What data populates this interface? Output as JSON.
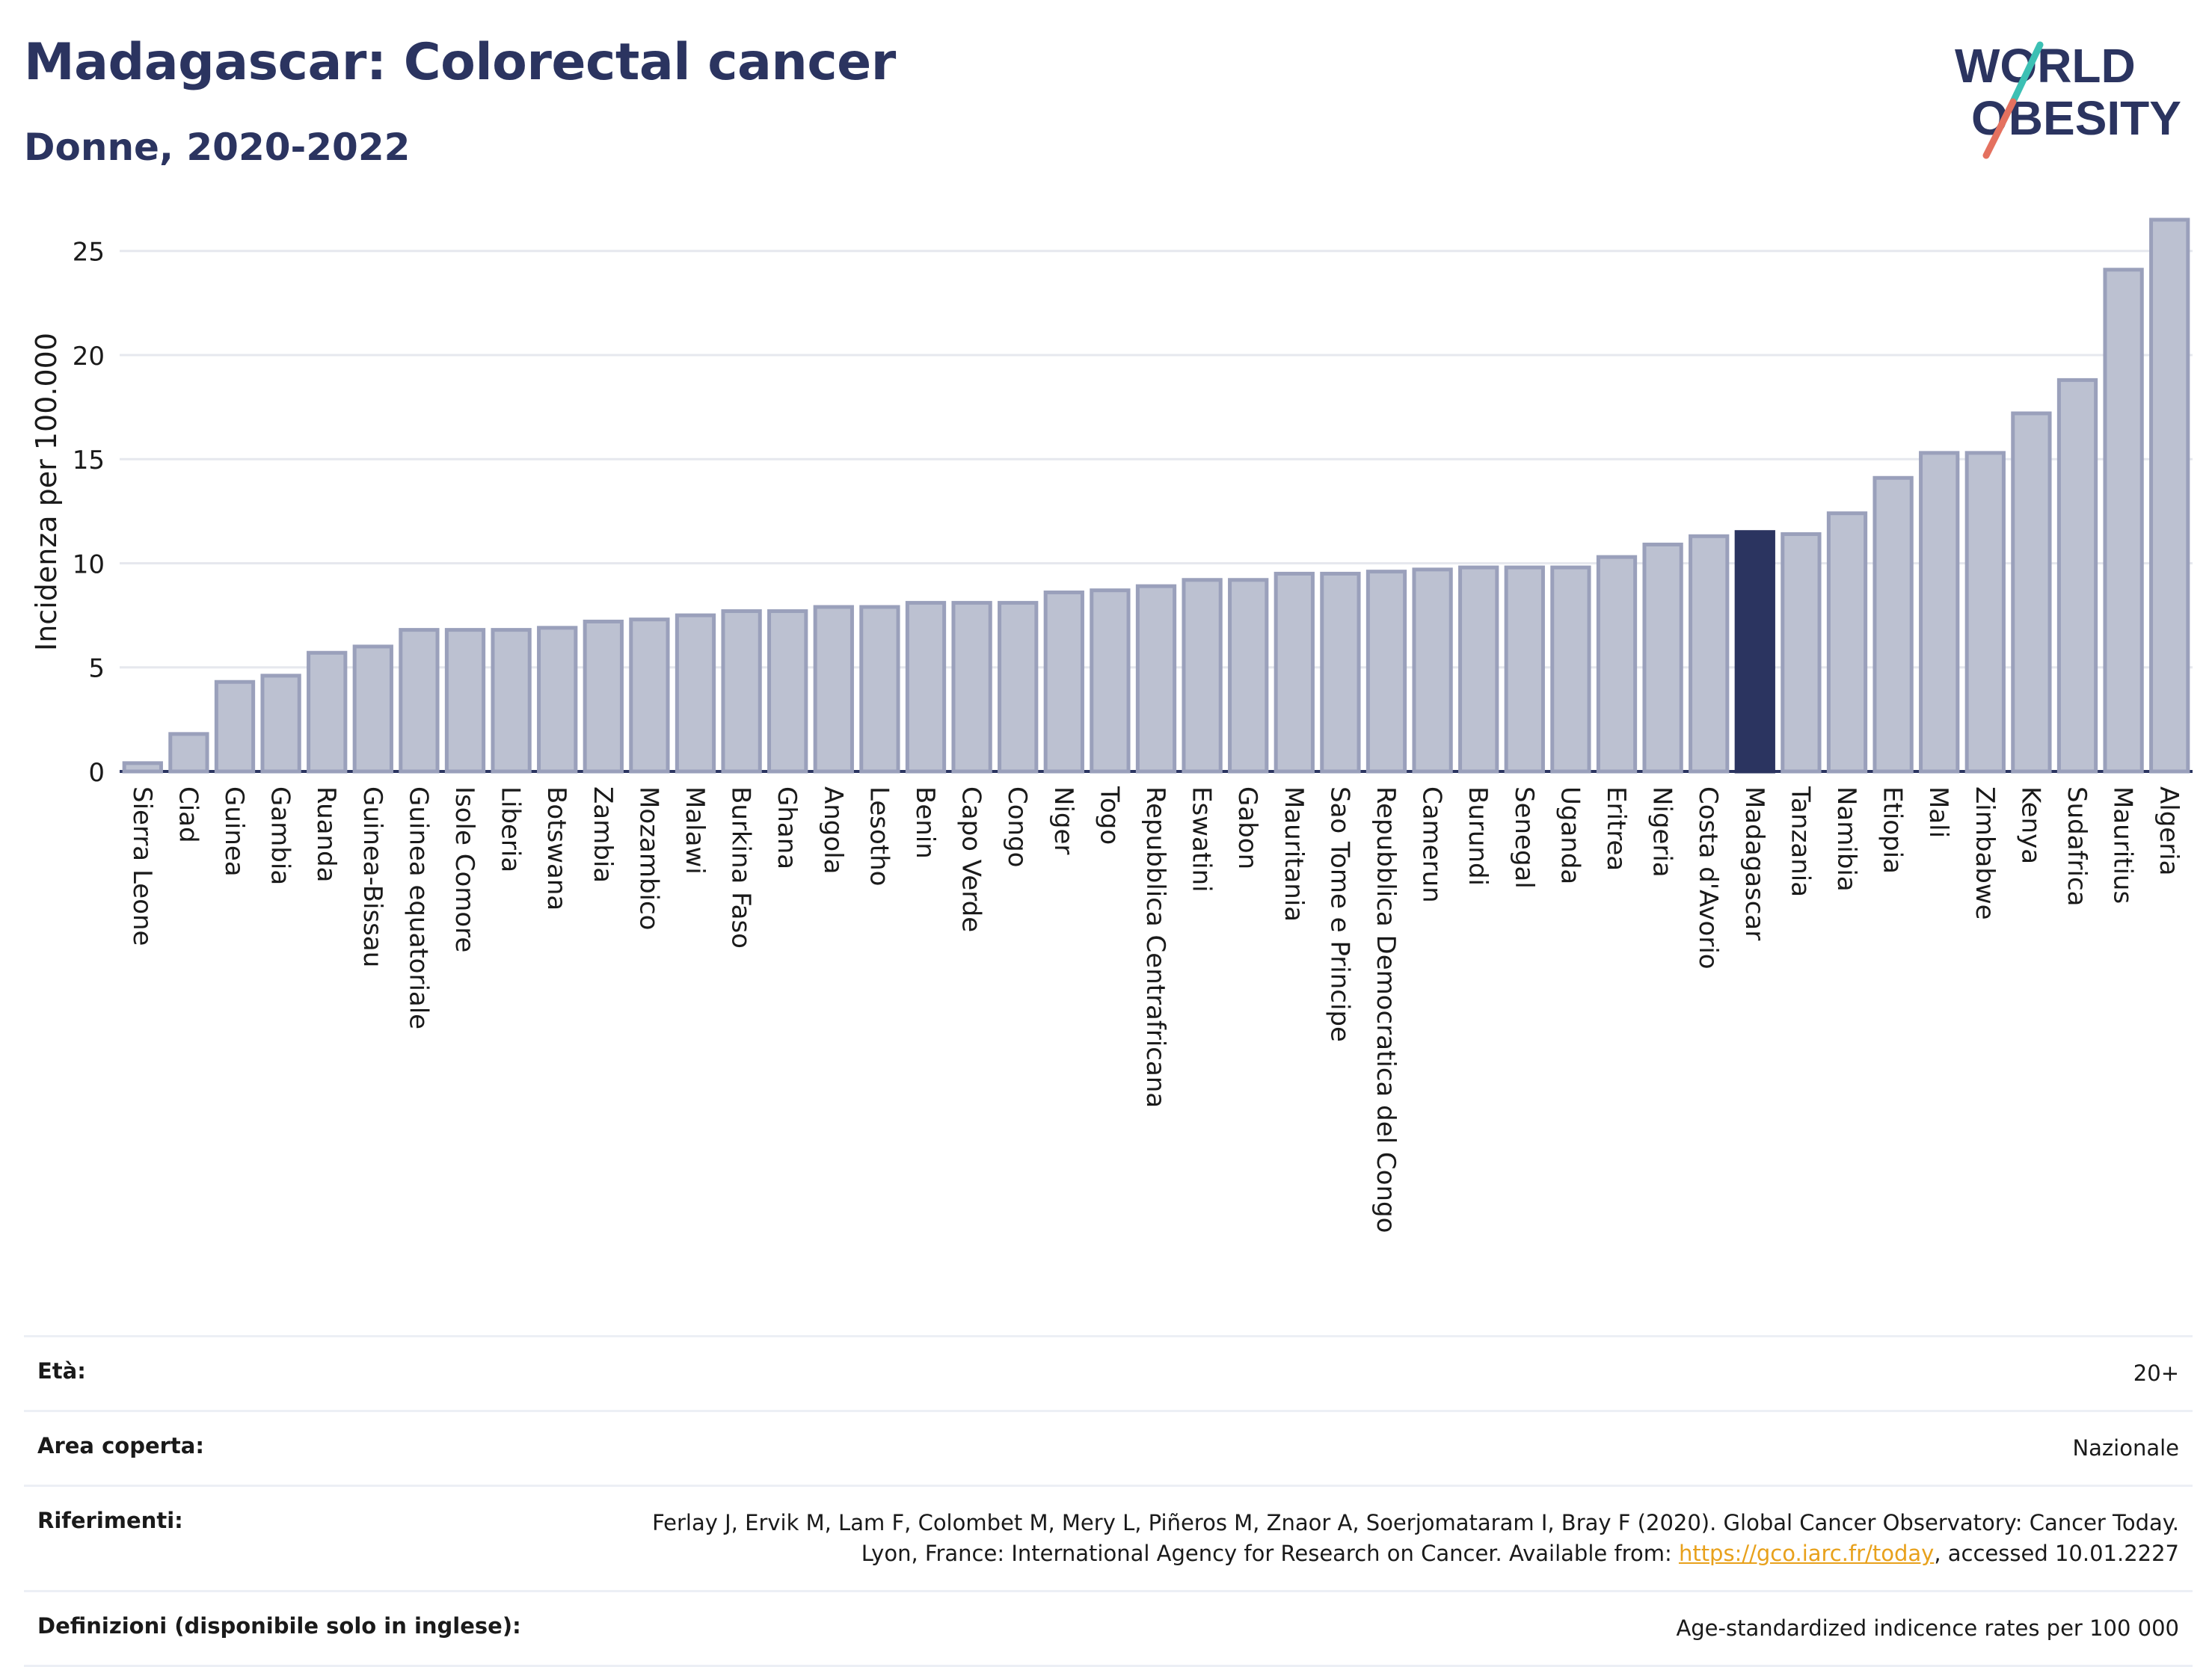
{
  "header": {
    "title": "Madagascar: Colorectal cancer",
    "subtitle": "Donne, 2020-2022",
    "logo_line1": "WORLD",
    "logo_line2": "OBESITY"
  },
  "colors": {
    "bar": "#bcc1d1",
    "bar_edge": "#9aa0bb",
    "highlight": "#2b3460",
    "title": "#2b3460",
    "grid": "#e6e8ee",
    "logo_teal": "#3cc0b4",
    "logo_coral": "#e4715f"
  },
  "chart_data": {
    "type": "bar",
    "title": "Madagascar: Colorectal cancer",
    "subtitle": "Donne, 2020-2022",
    "xlabel": "",
    "ylabel": "Incidenza per 100.000",
    "ylim": [
      0,
      27
    ],
    "yticks": [
      0,
      5,
      10,
      15,
      20,
      25
    ],
    "grid": true,
    "highlight": "Madagascar",
    "categories": [
      "Sierra Leone",
      "Ciad",
      "Guinea",
      "Gambia",
      "Ruanda",
      "Guinea-Bissau",
      "Guinea equatoriale",
      "Isole Comore",
      "Liberia",
      "Botswana",
      "Zambia",
      "Mozambico",
      "Malawi",
      "Burkina Faso",
      "Ghana",
      "Angola",
      "Lesotho",
      "Benin",
      "Capo Verde",
      "Congo",
      "Niger",
      "Togo",
      "Repubblica Centrafricana",
      "Eswatini",
      "Gabon",
      "Mauritania",
      "Sao Tome e Principe",
      "Repubblica Democratica del Congo",
      "Camerun",
      "Burundi",
      "Senegal",
      "Uganda",
      "Eritrea",
      "Nigeria",
      "Costa d'Avorio",
      "Madagascar",
      "Tanzania",
      "Namibia",
      "Etiopia",
      "Mali",
      "Zimbabwe",
      "Kenya",
      "Sudafrica",
      "Mauritius",
      "Algeria"
    ],
    "values": [
      0.4,
      1.8,
      4.3,
      4.6,
      5.7,
      6.0,
      6.8,
      6.8,
      6.8,
      6.9,
      7.2,
      7.3,
      7.5,
      7.7,
      7.7,
      7.9,
      7.9,
      8.1,
      8.1,
      8.1,
      8.6,
      8.7,
      8.9,
      9.2,
      9.2,
      9.5,
      9.5,
      9.6,
      9.7,
      9.8,
      9.8,
      9.8,
      10.3,
      10.9,
      11.3,
      11.5,
      11.4,
      12.4,
      14.1,
      15.3,
      15.3,
      17.2,
      18.8,
      24.1,
      26.5
    ]
  },
  "info": {
    "eta_label": "Età:",
    "eta_value": "20+",
    "area_label": "Area coperta:",
    "area_value": "Nazionale",
    "rif_label": "Riferimenti:",
    "rif_value_pre": "Ferlay J, Ervik M, Lam F, Colombet M, Mery L, Piñeros M, Znaor A, Soerjomataram I, Bray F (2020). Global Cancer Observatory: Cancer Today. Lyon, France: International Agency for Research on Cancer. Available from: ",
    "rif_link": "https://gco.iarc.fr/today",
    "rif_value_post": ", accessed 10.01.2227",
    "def_label": "Definizioni (disponibile solo in inglese):",
    "def_value": "Age-standardized indicence rates per 100 000"
  }
}
